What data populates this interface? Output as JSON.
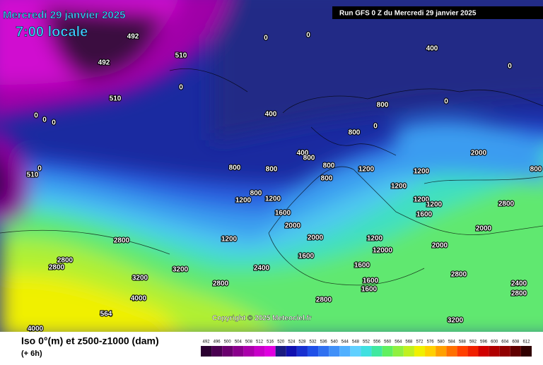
{
  "header": {
    "date": "Mercredi 29 janvier 2025",
    "time": "7:00 locale",
    "run": "Run GFS 0 Z du Mercredi 29 janvier 2025"
  },
  "copyright": "Copyright © 2025 Meteociel.fr",
  "legend": {
    "title": "Iso 0°(m) et z500-z1000 (dam)",
    "step": "(+ 6h)",
    "values": [
      492,
      496,
      500,
      504,
      508,
      512,
      516,
      520,
      524,
      528,
      532,
      536,
      540,
      544,
      548,
      552,
      556,
      560,
      564,
      568,
      572,
      576,
      580,
      584,
      588,
      592,
      596,
      600,
      604,
      608,
      612
    ],
    "colors": [
      "#2a0030",
      "#4a0050",
      "#6a006e",
      "#8a008c",
      "#aa00aa",
      "#c800c8",
      "#e000e0",
      "#1a1a80",
      "#1010b0",
      "#1830d0",
      "#2050e8",
      "#3070f0",
      "#4090f8",
      "#50b0ff",
      "#60d0ff",
      "#40e0e0",
      "#40e8a0",
      "#60f060",
      "#90f040",
      "#c0f020",
      "#f0f000",
      "#ffd000",
      "#ffa000",
      "#ff7000",
      "#ff4000",
      "#f02000",
      "#d00000",
      "#b00000",
      "#900000",
      "#600000",
      "#300000"
    ]
  },
  "map_labels": [
    "492",
    "492",
    "510",
    "510",
    "0",
    "0",
    "400",
    "0",
    "0",
    "0",
    "0",
    "0",
    "510",
    "0",
    "400",
    "800",
    "0",
    "800",
    "0",
    "400",
    "800",
    "800",
    "800",
    "800",
    "800",
    "1200",
    "1200",
    "2000",
    "800",
    "800",
    "1200",
    "1200",
    "1200",
    "1200",
    "1200",
    "2800",
    "1600",
    "2000",
    "1600",
    "1200",
    "2800",
    "2000",
    "1200",
    "2000",
    "2800",
    "2800",
    "2400",
    "1600",
    "12000",
    "2000",
    "1600",
    "3200",
    "3200",
    "2800",
    "1600",
    "1600",
    "2800",
    "2400",
    "2800",
    "4000",
    "564",
    "2800",
    "3200",
    "4000"
  ]
}
